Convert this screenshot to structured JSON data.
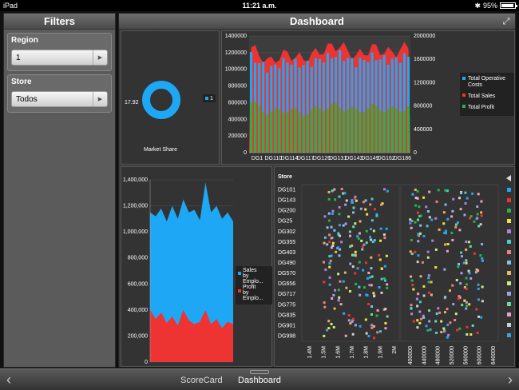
{
  "status": {
    "carrier": "iPad",
    "time": "11:21 a.m.",
    "battery": "95%",
    "battery_level": 0.95
  },
  "filters": {
    "title": "Filters",
    "region": {
      "label": "Region",
      "value": "1"
    },
    "store": {
      "label": "Store",
      "value": "Todos"
    }
  },
  "dashboard": {
    "title": "Dashboard"
  },
  "market_share": {
    "value_label": "17.92",
    "caption": "Market Share",
    "legend": "1"
  },
  "nav": {
    "tab1": "ScoreCard",
    "tab2": "Dashboard"
  },
  "chart_data": [
    {
      "type": "pie",
      "title": "Market Share",
      "slices": [
        {
          "name": "1",
          "value": 17.92,
          "color": "#1ea7f4"
        }
      ],
      "legend_position": "right"
    },
    {
      "type": "bar",
      "categories": [
        "DG1",
        "DG110",
        "DG114",
        "DG117",
        "DG126",
        "DG131",
        "DG143",
        "DG149",
        "DG162",
        "DG186"
      ],
      "series": [
        {
          "name": "Total Operative Costs",
          "color": "#1ea7f4",
          "axis": "left",
          "values": [
            1150000,
            1000000,
            1100000,
            1050000,
            1120000,
            1180000,
            1080000,
            1150000,
            1100000,
            1160000
          ]
        },
        {
          "name": "Total Sales",
          "color": "#ee3333",
          "axis": "right",
          "values": [
            1800000,
            1550000,
            1700000,
            1600000,
            1750000,
            1850000,
            1650000,
            1800000,
            1700000,
            1820000
          ]
        },
        {
          "name": "Total Profit",
          "color": "#27b34a",
          "axis": "left",
          "values": [
            600000,
            480000,
            520000,
            470000,
            540000,
            560000,
            500000,
            550000,
            510000,
            540000
          ]
        }
      ],
      "y_ticks_left": [
        "0",
        "200000",
        "400000",
        "600000",
        "800000",
        "1000000",
        "1200000",
        "1400000"
      ],
      "y_ticks_right": [
        "0",
        "400000",
        "800000",
        "1200000",
        "1600000",
        "2000000"
      ],
      "ylim_left": [
        0,
        1400000
      ],
      "ylim_right": [
        0,
        2000000
      ],
      "legend_position": "right"
    },
    {
      "type": "area",
      "series": [
        {
          "name": "Sales by Emplo...",
          "color": "#1ea7f4",
          "values": [
            1150000,
            1120000,
            1180000,
            1080000,
            1200000,
            1100000,
            1250000,
            1150000,
            1170000,
            1090000,
            1380000,
            1150000,
            1200000,
            1100000,
            1150000,
            1080000
          ]
        },
        {
          "name": "Profit by Emplo...",
          "color": "#ee3333",
          "values": [
            400000,
            330000,
            380000,
            300000,
            350000,
            280000,
            400000,
            320000,
            290000,
            310000,
            400000,
            290000,
            330000,
            260000,
            310000,
            290000
          ]
        }
      ],
      "y_ticks": [
        "0",
        "200,000",
        "400,000",
        "600,000",
        "800,000",
        "1,000,000",
        "1,200,000",
        "1,400,000"
      ],
      "ylim": [
        0,
        1400000
      ],
      "legend_position": "right"
    },
    {
      "type": "scatter",
      "ylabel": "Store",
      "stores": [
        "DG101",
        "DG143",
        "DG200",
        "DG25",
        "DG302",
        "DG355",
        "DG403",
        "DG490",
        "DG570",
        "DG656",
        "DG717",
        "DG775",
        "DG835",
        "DG901",
        "DG998"
      ],
      "panel1_ticks": [
        "1.4M",
        "1.5M",
        "1.6M",
        "1.7M",
        "1.8M",
        "1.9M",
        "2M"
      ],
      "panel2_ticks": [
        "400000",
        "440000",
        "480000",
        "520000",
        "560000",
        "600000",
        "640000"
      ],
      "legend_colors": [
        "#1ea7f4",
        "#ee3333",
        "#27b34a",
        "#f0e040",
        "#b080e0",
        "#40d0d0",
        "#f08080",
        "#80c0f0",
        "#f0b060",
        "#c0f080",
        "#a0a0f0",
        "#60e0a0",
        "#f0a0c0",
        "#d0d0d0",
        "#40a0e0"
      ]
    }
  ]
}
